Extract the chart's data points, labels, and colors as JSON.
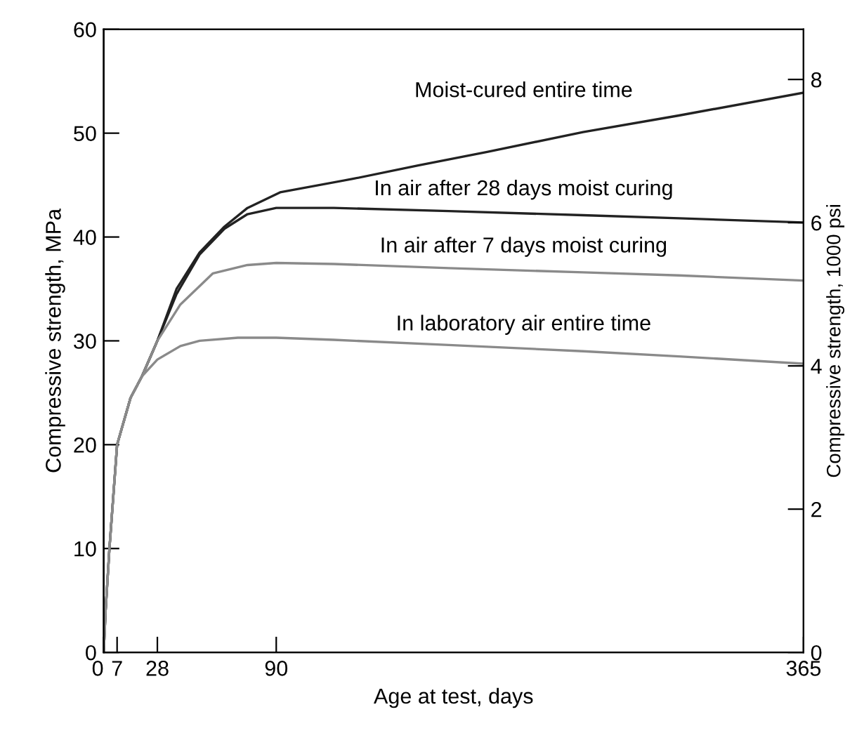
{
  "chart_data": {
    "type": "line",
    "xlabel": "Age at test, days",
    "ylabel": "Compressive strength, MPa",
    "y2label": "Compressive strength, 1000 psi",
    "xlim": [
      0,
      365
    ],
    "xticks": [
      0,
      7,
      28,
      90,
      365
    ],
    "ylim": [
      0,
      60
    ],
    "yticks": [
      0,
      10,
      20,
      30,
      40,
      50,
      60
    ],
    "y2lim": [
      0,
      8.7
    ],
    "y2ticks": [
      0,
      2,
      4,
      6,
      8
    ],
    "grid": false,
    "legend": false,
    "marker": "none",
    "line_style": "solid",
    "series": [
      {
        "name": "Moist-cured entire time",
        "color": "#222222",
        "x": [
          0,
          1,
          3,
          7,
          14,
          20,
          28,
          38,
          50,
          63,
          75,
          92,
          130,
          164,
          200,
          250,
          300,
          365
        ],
        "values": [
          0,
          4,
          10,
          20,
          24.5,
          26.6,
          30,
          35,
          38.5,
          41,
          42.8,
          44.3,
          45.6,
          46.9,
          48.2,
          50.1,
          51.7,
          53.9
        ]
      },
      {
        "name": "In air after 28 days moist curing",
        "color": "#222222",
        "x": [
          0,
          1,
          3,
          7,
          14,
          20,
          28,
          38,
          50,
          63,
          75,
          90,
          120,
          180,
          250,
          300,
          365
        ],
        "values": [
          0,
          4,
          10,
          20,
          24.5,
          26.6,
          30,
          34.5,
          38.3,
          40.8,
          42.2,
          42.8,
          42.8,
          42.5,
          42.1,
          41.8,
          41.4
        ]
      },
      {
        "name": "In air after 7 days moist curing",
        "color": "#8a8a8a",
        "x": [
          0,
          1,
          3,
          7,
          14,
          20,
          28,
          40,
          57,
          75,
          90,
          120,
          180,
          250,
          300,
          365
        ],
        "values": [
          0,
          4,
          10,
          20,
          24.5,
          26.6,
          30,
          33.5,
          36.5,
          37.3,
          37.5,
          37.4,
          37,
          36.6,
          36.3,
          35.8
        ]
      },
      {
        "name": "In laboratory air entire time",
        "color": "#8a8a8a",
        "x": [
          0,
          1,
          3,
          7,
          14,
          20,
          28,
          40,
          50,
          70,
          90,
          120,
          180,
          250,
          300,
          365
        ],
        "values": [
          0,
          4,
          10,
          20,
          24.5,
          26.6,
          28.2,
          29.5,
          30,
          30.3,
          30.3,
          30.1,
          29.6,
          29,
          28.5,
          27.8
        ]
      }
    ]
  }
}
